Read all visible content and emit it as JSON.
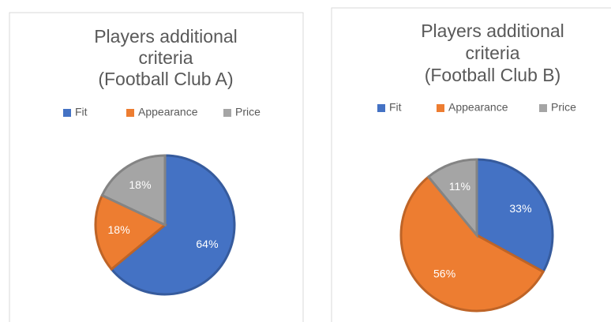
{
  "chart_data": [
    {
      "type": "pie",
      "title": [
        "Players additional",
        "criteria",
        "(Football Club A)"
      ],
      "categories": [
        "Fit",
        "Appearance",
        "Price"
      ],
      "values": [
        64,
        18,
        18
      ],
      "colors": [
        "#4472c4",
        "#ed7d31",
        "#a5a5a5"
      ],
      "legend": "top"
    },
    {
      "type": "pie",
      "title": [
        "Players additional",
        "criteria",
        "(Football Club B)"
      ],
      "categories": [
        "Fit",
        "Appearance",
        "Price"
      ],
      "values": [
        33,
        56,
        11
      ],
      "colors": [
        "#4472c4",
        "#ed7d31",
        "#a5a5a5"
      ],
      "legend": "top"
    }
  ]
}
